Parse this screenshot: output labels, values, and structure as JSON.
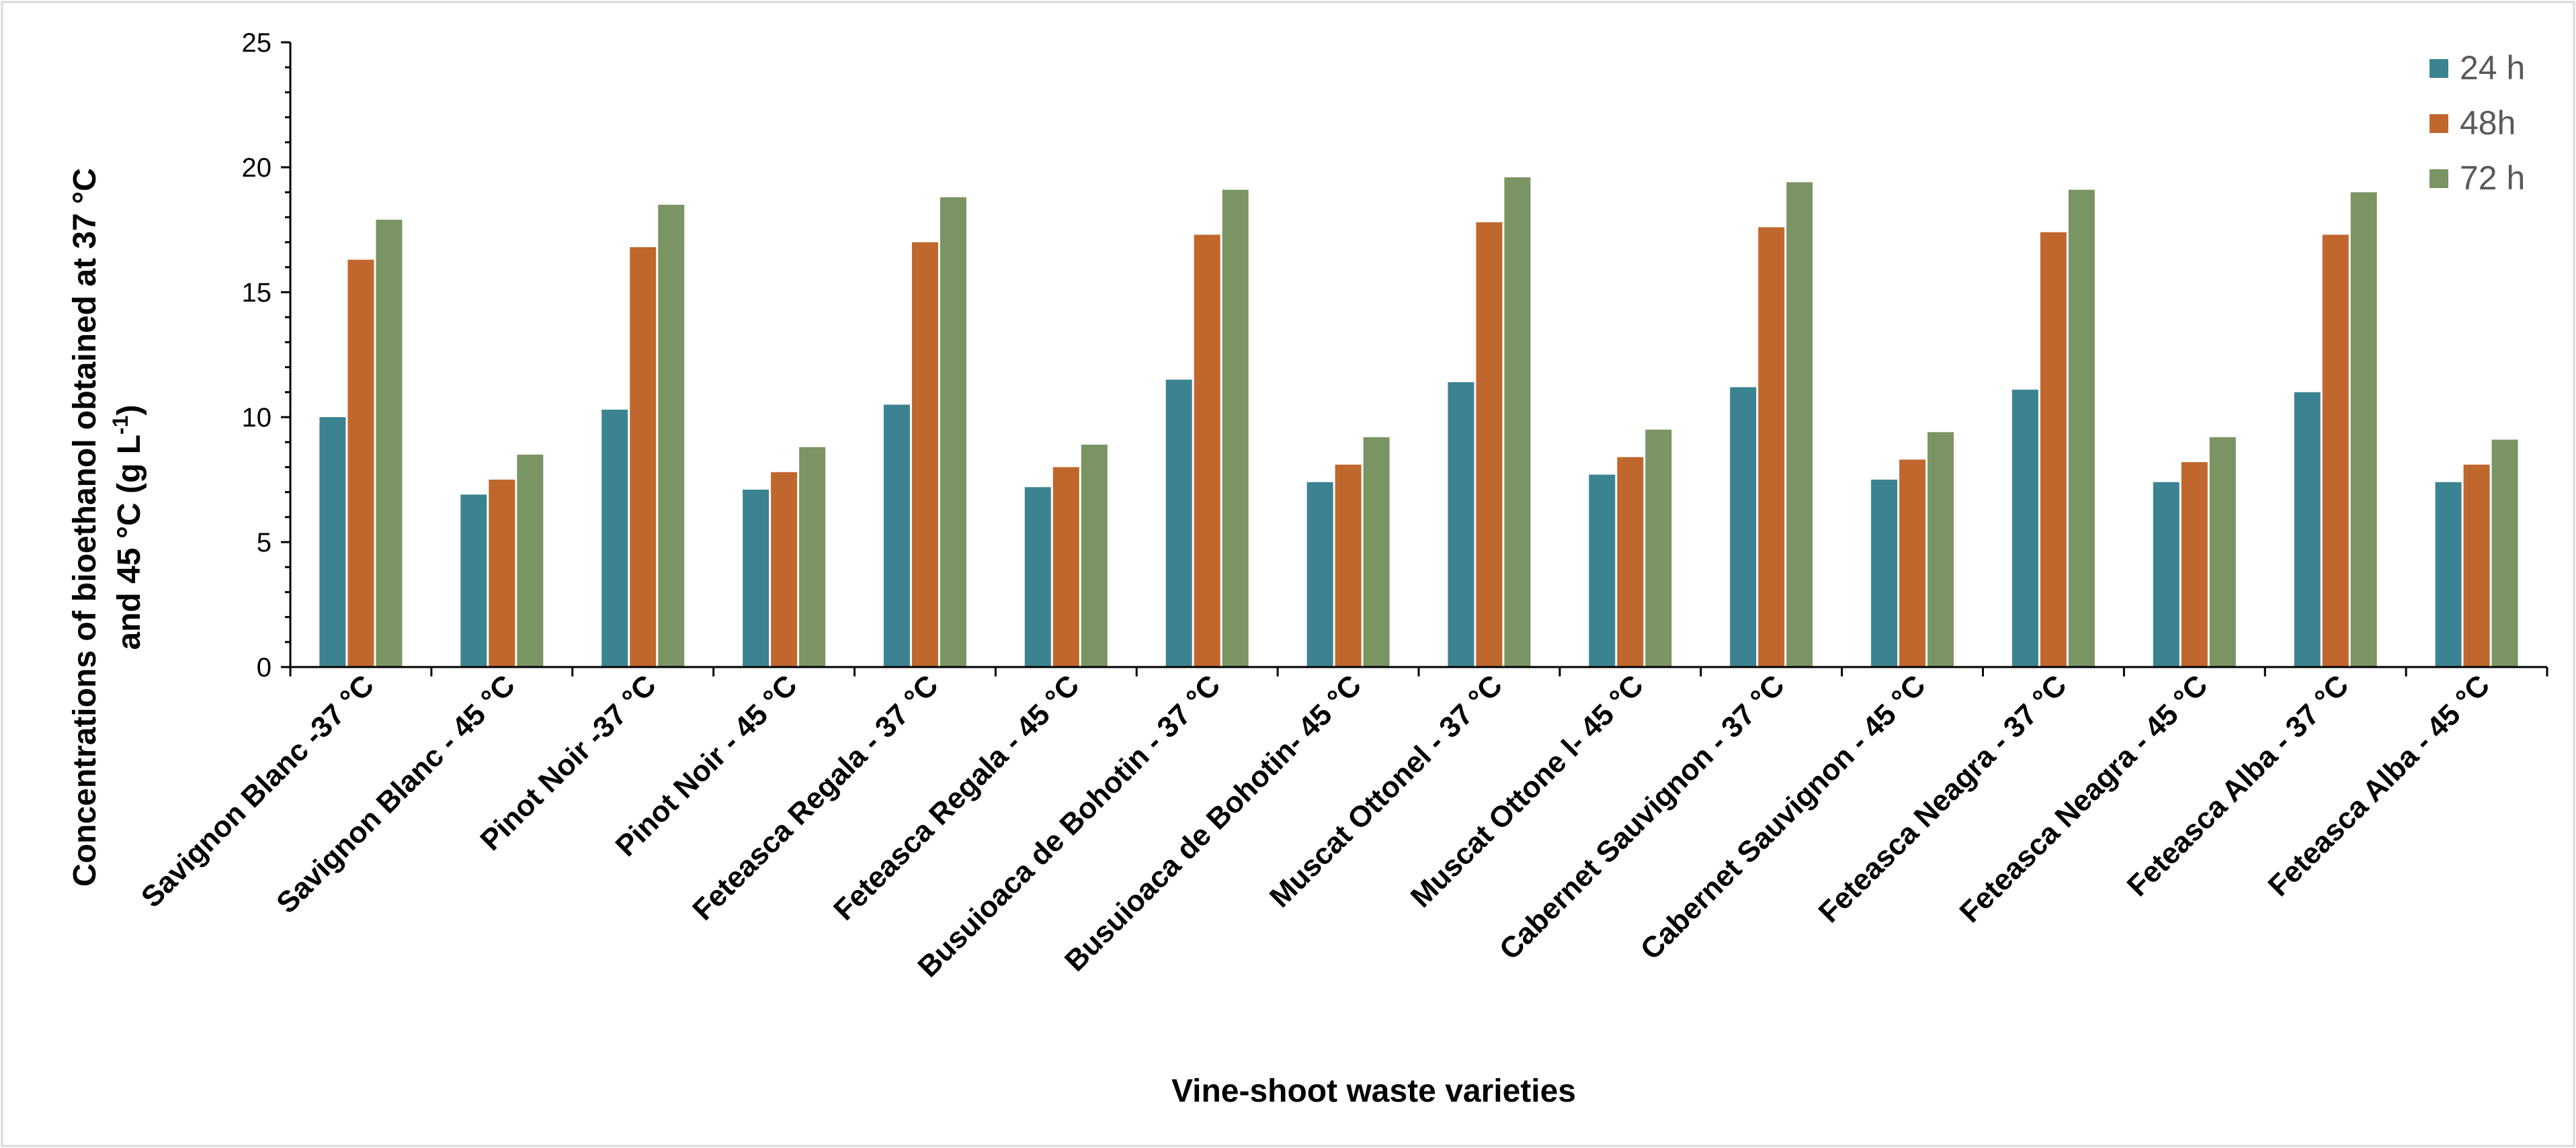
{
  "chart_data": {
    "type": "bar",
    "title": "",
    "xlabel": "Vine-shoot waste varieties",
    "ylabel_line1": "Concentrations of bioethanol obtained at 37 °C",
    "ylabel_line2_pre": "and 45 °C (g L",
    "ylabel_sup": "-1",
    "ylabel_line2_post": ")",
    "ylim": [
      0,
      25
    ],
    "yticks": [
      0,
      5,
      10,
      15,
      20,
      25
    ],
    "legend_position": "top-right",
    "categories": [
      "Savignon Blanc -37 °C",
      "Savignon Blanc - 45 °C",
      "Pinot Noir -37 °C",
      "Pinot Noir - 45 °C",
      "Feteasca Regala - 37 °C",
      "Feteasca Regala - 45 °C",
      "Busuioaca de Bohotin - 37 °C",
      "Busuioaca de Bohotin- 45 °C",
      "Muscat Ottonel - 37 °C",
      "Muscat Ottone l- 45 °C",
      "Cabernet Sauvignon - 37 °C",
      "Cabernet Sauvignon - 45 °C",
      "Feteasca Neagra - 37 °C",
      "Feteasca Neagra - 45 °C",
      "Feteasca Alba - 37 °C",
      "Feteasca Alba - 45 °C"
    ],
    "series": [
      {
        "name": "24 h",
        "color": "#3b8391",
        "values": [
          10.0,
          6.9,
          10.3,
          7.1,
          10.5,
          7.2,
          11.5,
          7.4,
          11.4,
          7.7,
          11.2,
          7.5,
          11.1,
          7.4,
          11.0,
          7.4
        ]
      },
      {
        "name": "48h",
        "color": "#c0672d",
        "values": [
          16.3,
          7.5,
          16.8,
          7.8,
          17.0,
          8.0,
          17.3,
          8.1,
          17.8,
          8.4,
          17.6,
          8.3,
          17.4,
          8.2,
          17.3,
          8.1
        ]
      },
      {
        "name": "72 h",
        "color": "#7a9463",
        "values": [
          17.9,
          8.5,
          18.5,
          8.8,
          18.8,
          8.9,
          19.1,
          9.2,
          19.6,
          9.5,
          19.4,
          9.4,
          19.1,
          9.2,
          19.0,
          9.1
        ]
      }
    ]
  }
}
